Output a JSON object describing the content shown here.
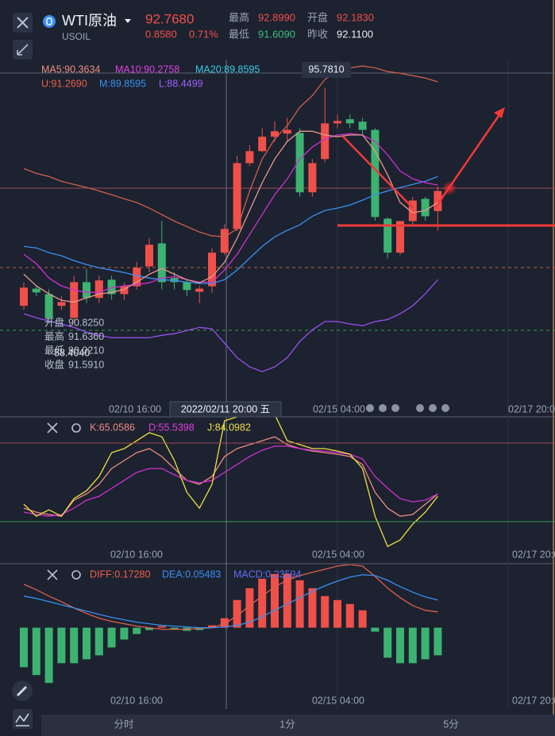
{
  "header": {
    "name": "WTI原油",
    "symbol": "USOIL",
    "price": "92.7680",
    "change": "0.8580",
    "change_pct": "0.71%",
    "stats": [
      {
        "label": "最高",
        "value": "92.8990",
        "color": "#f0504a"
      },
      {
        "label": "开盘",
        "value": "92.1830",
        "color": "#f0504a"
      },
      {
        "label": "最低",
        "value": "91.6090",
        "color": "#3cc07a"
      },
      {
        "label": "昨收",
        "value": "92.1100",
        "color": "#e8ecf4"
      }
    ]
  },
  "chart_data": [
    {
      "type": "candlestick",
      "ylim": [
        86.6,
        96.6
      ],
      "up_color": "#f0504a",
      "down_color": "#3cb371",
      "legend": [
        {
          "text": "MA5:90.3634",
          "color": "#f08c80"
        },
        {
          "text": "MA10:90.2758",
          "color": "#e040e0"
        },
        {
          "text": "MA20:89.8595",
          "color": "#3fc8e8"
        },
        {
          "text": "U:91.2690",
          "color": "#e8604a"
        },
        {
          "text": "M:89.8595",
          "color": "#3a90f0"
        },
        {
          "text": "L:88.4499",
          "color": "#a060ff"
        }
      ],
      "open": [
        89.42,
        89.92,
        89.76,
        89.42,
        89.07,
        90.11,
        89.65,
        90.18,
        89.76,
        89.99,
        90.57,
        91.24,
        90.23,
        90.11,
        89.83,
        89.99,
        90.97,
        91.66,
        93.58,
        93.93,
        94.35,
        94.44,
        94.46,
        92.73,
        93.7,
        94.74,
        94.86,
        94.79,
        94.55,
        91.96,
        90.97,
        91.89,
        92.54,
        92.183
      ],
      "close": [
        89.95,
        89.81,
        89.07,
        89.53,
        90.11,
        89.65,
        90.16,
        89.76,
        89.99,
        90.53,
        91.2,
        90.11,
        90.11,
        89.88,
        89.92,
        90.97,
        91.66,
        93.58,
        93.93,
        94.35,
        94.51,
        94.55,
        92.73,
        93.58,
        94.74,
        94.81,
        94.74,
        94.55,
        92.01,
        90.97,
        91.89,
        92.49,
        92.03,
        92.768
      ],
      "high": [
        90.1,
        90.0,
        89.9,
        89.7,
        90.3,
        90.5,
        90.3,
        90.3,
        90.1,
        90.7,
        91.4,
        91.9,
        90.4,
        90.2,
        90.0,
        91.1,
        91.8,
        93.8,
        94.1,
        94.6,
        94.8,
        94.9,
        94.6,
        93.7,
        95.781,
        95.0,
        95.0,
        94.9,
        94.6,
        92.0,
        91.9,
        92.6,
        92.6,
        92.899
      ],
      "low": [
        89.3,
        89.7,
        88.9,
        89.3,
        88.95,
        89.5,
        89.5,
        89.6,
        89.6,
        89.9,
        90.4,
        89.9,
        89.9,
        89.7,
        89.5,
        89.8,
        90.9,
        91.6,
        93.5,
        93.9,
        94.2,
        94.2,
        92.6,
        92.6,
        93.6,
        94.6,
        94.6,
        94.4,
        91.9,
        90.8,
        90.9,
        91.8,
        91.9,
        91.609
      ],
      "high_label": "95.7810",
      "series": [
        {
          "color": "#d0604a",
          "values": [
            93.42,
            93.28,
            93.19,
            93.05,
            92.96,
            92.87,
            92.77,
            92.66,
            92.54,
            92.43,
            92.27,
            92.08,
            91.89,
            91.73,
            91.57,
            91.46,
            91.43,
            91.66,
            92.77,
            93.7,
            94.28,
            94.67,
            95.21,
            95.55,
            96.02,
            96.25,
            96.36,
            96.41,
            96.36,
            96.25,
            96.2,
            96.13,
            96.06,
            95.95
          ]
        },
        {
          "color": "#3a90f0",
          "values": [
            91.15,
            91.11,
            90.97,
            90.88,
            90.74,
            90.62,
            90.53,
            90.46,
            90.39,
            90.3,
            90.23,
            90.18,
            90.16,
            90.11,
            90.07,
            90.07,
            90.18,
            90.46,
            90.81,
            91.15,
            91.43,
            91.62,
            91.78,
            92.03,
            92.2,
            92.27,
            92.36,
            92.5,
            92.66,
            92.77,
            92.87,
            92.96,
            93.05,
            93.19
          ]
        },
        {
          "color": "#9a50f0",
          "values": [
            89.19,
            89.07,
            88.98,
            88.89,
            88.79,
            88.65,
            88.56,
            88.49,
            88.49,
            88.49,
            88.49,
            88.56,
            88.61,
            88.7,
            88.79,
            88.75,
            88.33,
            87.91,
            87.64,
            87.5,
            87.64,
            87.91,
            88.38,
            88.72,
            88.96,
            88.96,
            88.89,
            88.84,
            88.96,
            89.02,
            89.19,
            89.42,
            89.77,
            90.18
          ]
        },
        {
          "color": "#d030d0",
          "values": [
            90.92,
            90.65,
            90.23,
            90.0,
            89.88,
            89.81,
            89.81,
            89.95,
            90.0,
            90.04,
            90.09,
            90.23,
            90.27,
            90.18,
            90.11,
            90.11,
            90.46,
            90.92,
            91.5,
            92.08,
            92.66,
            93.12,
            93.7,
            94.05,
            94.28,
            94.4,
            94.44,
            94.4,
            94.21,
            93.82,
            93.35,
            93.12,
            93.01,
            92.94
          ]
        },
        {
          "color": "#e89a8c",
          "values": [
            90.34,
            90.0,
            89.77,
            89.58,
            89.53,
            89.65,
            89.77,
            89.81,
            89.9,
            90.11,
            90.34,
            90.51,
            90.34,
            90.18,
            90.09,
            90.27,
            90.69,
            91.39,
            92.2,
            93.01,
            93.7,
            94.21,
            94.51,
            94.51,
            94.4,
            94.35,
            94.4,
            94.4,
            93.93,
            93.24,
            92.43,
            92.13,
            92.2,
            92.43
          ]
        }
      ],
      "tooltip": [
        {
          "label": "开盘",
          "value": "90.8250"
        },
        {
          "label": "最高",
          "value": "91.6360"
        },
        {
          "label": "最低",
          "value": "90.0210"
        },
        {
          "label": "收盘",
          "value": "91.5910"
        }
      ],
      "tooltip_overlay": "88.4040",
      "xlabels": [
        "02/10 16:00",
        "02/15 04:00",
        "02/17 20:00"
      ],
      "crosshair_label": "2022/02/11 20:00 五"
    },
    {
      "type": "line",
      "ylim": [
        -9,
        100
      ],
      "legend": [
        {
          "text": "K:65.0586",
          "color": "#f08c80"
        },
        {
          "text": "D:55.5398",
          "color": "#e040e0"
        },
        {
          "text": "J:84.0982",
          "color": "#f0e040"
        }
      ],
      "series": [
        {
          "color": "#f08c80",
          "values": [
            30.3,
            27.3,
            25.5,
            24.2,
            36.4,
            41.2,
            48.5,
            60.6,
            66.7,
            72.7,
            75.8,
            69.7,
            60.6,
            51.5,
            48.5,
            54.5,
            69.7,
            75.8,
            78.8,
            81.8,
            84.8,
            78.8,
            75.8,
            73.9,
            72.7,
            71.5,
            69.7,
            63.6,
            42.4,
            30.3,
            24.2,
            25.5,
            33.3,
            41.2
          ]
        },
        {
          "color": "#d030d0",
          "values": [
            27.3,
            25.5,
            24.2,
            25.5,
            30.3,
            36.4,
            39.4,
            45.5,
            51.5,
            57.6,
            60.6,
            60.6,
            55.8,
            51.5,
            49.7,
            51.5,
            57.6,
            63.6,
            69.7,
            74.5,
            77.6,
            77.6,
            75.8,
            74.5,
            73.9,
            72.7,
            71.5,
            67.9,
            54.5,
            45.5,
            37.6,
            35.2,
            36.4,
            41.2
          ]
        },
        {
          "color": "#f0e040",
          "values": [
            33.3,
            24.2,
            29.1,
            24.2,
            37.6,
            43.6,
            54.5,
            72.7,
            75.8,
            81.8,
            87.9,
            84.8,
            66.7,
            42.4,
            30.3,
            48.5,
            97.0,
            100.0,
            103.0,
            103.0,
            101.8,
            81.8,
            78.8,
            75.8,
            75.8,
            73.9,
            71.5,
            60.6,
            24.2,
            1.2,
            6.1,
            18.2,
            27.3,
            39.4
          ]
        }
      ],
      "xlabels": [
        "02/10 16:00",
        "02/15 04:00",
        "02/17 20:00"
      ]
    },
    {
      "type": "macd",
      "ylim": [
        -1.1,
        0.8
      ],
      "up_color": "#f0504a",
      "down_color": "#3cb371",
      "legend": [
        {
          "text": "DIFF:0.17280",
          "color": "#f0604a"
        },
        {
          "text": "DEA:0.05483",
          "color": "#3a90f0"
        },
        {
          "text": "MACD:0.23594",
          "color": "#6070f0"
        }
      ],
      "histogram": [
        -0.5,
        -0.6,
        -0.7,
        -0.45,
        -0.45,
        -0.4,
        -0.35,
        -0.25,
        -0.15,
        -0.08,
        -0.03,
        0.02,
        -0.02,
        -0.04,
        -0.03,
        0.03,
        0.12,
        0.35,
        0.5,
        0.62,
        0.68,
        0.68,
        0.6,
        0.5,
        0.4,
        0.35,
        0.3,
        0.22,
        -0.05,
        -0.38,
        -0.45,
        -0.45,
        -0.4,
        -0.35
      ],
      "series": [
        {
          "color": "#e0604a",
          "values": [
            0.55,
            0.48,
            0.4,
            0.33,
            0.25,
            0.18,
            0.12,
            0.08,
            0.05,
            0.02,
            0.0,
            -0.02,
            -0.02,
            -0.02,
            -0.01,
            0.0,
            0.05,
            0.15,
            0.28,
            0.4,
            0.52,
            0.6,
            0.66,
            0.7,
            0.74,
            0.78,
            0.8,
            0.78,
            0.65,
            0.5,
            0.38,
            0.28,
            0.22,
            0.2
          ]
        },
        {
          "color": "#3a90f0",
          "values": [
            0.4,
            0.37,
            0.33,
            0.29,
            0.25,
            0.21,
            0.17,
            0.13,
            0.1,
            0.07,
            0.05,
            0.03,
            0.02,
            0.01,
            0.0,
            0.0,
            0.01,
            0.03,
            0.07,
            0.14,
            0.22,
            0.3,
            0.38,
            0.46,
            0.53,
            0.59,
            0.64,
            0.67,
            0.66,
            0.6,
            0.52,
            0.45,
            0.39,
            0.35
          ]
        }
      ],
      "xlabels": [
        "02/10 16:00",
        "02/15 04:00",
        "02/17 20:00"
      ]
    }
  ],
  "tabs": [
    "分时",
    "1分",
    "5分"
  ]
}
